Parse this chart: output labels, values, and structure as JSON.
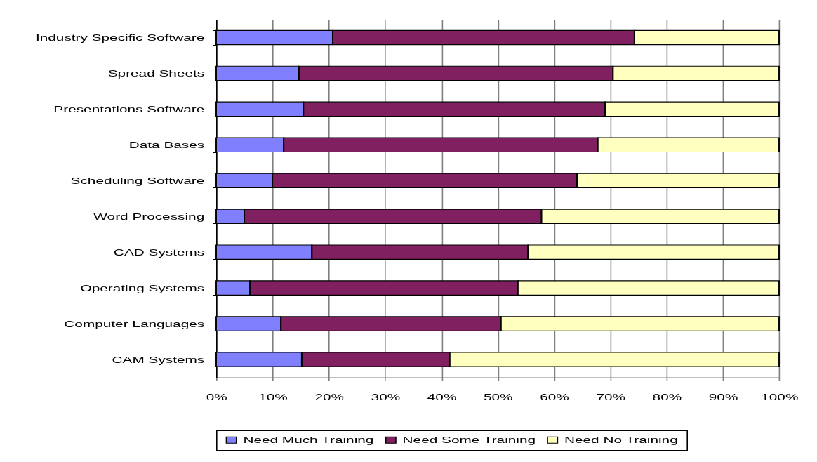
{
  "chart_data": {
    "type": "bar",
    "orientation": "horizontal",
    "stacked": true,
    "categories": [
      "Industry Specific Software",
      "Spread Sheets",
      "Presentations Software",
      "Data Bases",
      "Scheduling Software",
      "Word Processing",
      "CAD Systems",
      "Operating Systems",
      "Computer Languages",
      "CAM Systems"
    ],
    "series": [
      {
        "name": "Need Much Training",
        "color": "#8080ff",
        "values": [
          20.7,
          14.7,
          15.5,
          12.0,
          10.0,
          5.0,
          17.0,
          6.0,
          11.5,
          15.2
        ]
      },
      {
        "name": "Need Some Training",
        "color": "#802060",
        "values": [
          53.6,
          55.8,
          53.6,
          55.8,
          54.1,
          52.8,
          38.4,
          47.6,
          39.1,
          26.3
        ]
      },
      {
        "name": "Need No Training",
        "color": "#ffffc0",
        "values": [
          25.7,
          29.5,
          30.9,
          32.2,
          35.9,
          42.2,
          44.6,
          46.4,
          49.4,
          58.5
        ]
      }
    ],
    "xlim": [
      0,
      100
    ],
    "xticks": [
      {
        "value": 0,
        "label": "0%"
      },
      {
        "value": 10,
        "label": "10%"
      },
      {
        "value": 20,
        "label": "20%"
      },
      {
        "value": 30,
        "label": "30%"
      },
      {
        "value": 40,
        "label": "40%"
      },
      {
        "value": 50,
        "label": "50%"
      },
      {
        "value": 60,
        "label": "60%"
      },
      {
        "value": 70,
        "label": "70%"
      },
      {
        "value": 80,
        "label": "80%"
      },
      {
        "value": 90,
        "label": "90%"
      },
      {
        "value": 100,
        "label": "100%"
      }
    ],
    "grid": "x",
    "legend": "bottom"
  }
}
